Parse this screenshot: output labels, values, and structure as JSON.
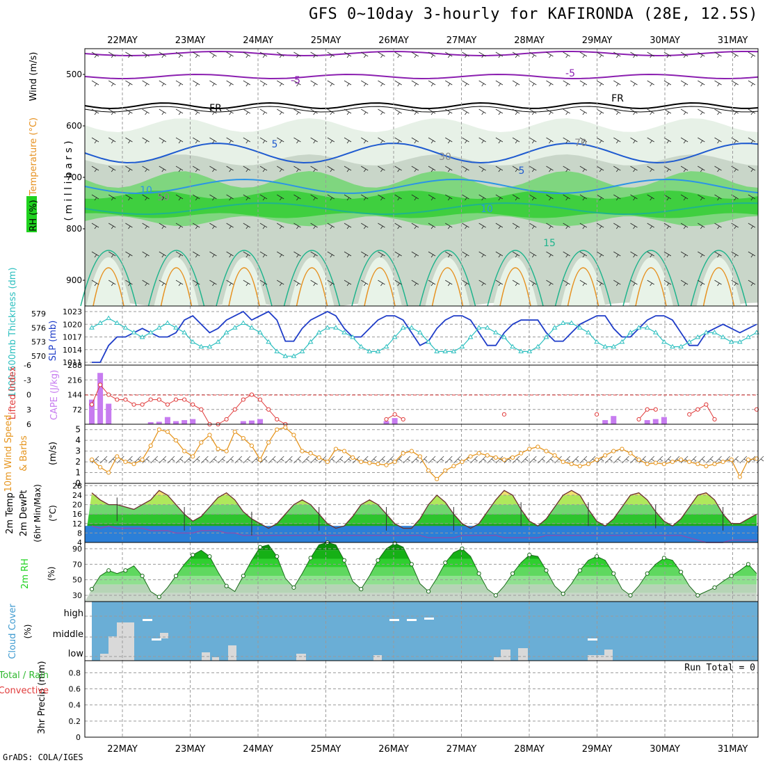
{
  "header": {
    "title": "GFS 0~10day 3-hourly for KAFIRONDA (28E, 12.5S)"
  },
  "footer": {
    "credit": "GrADS: COLA/IGES"
  },
  "chart_data": {
    "type": "meteogram",
    "dates": [
      "22MAY",
      "23MAY",
      "24MAY",
      "25MAY",
      "26MAY",
      "27MAY",
      "28MAY",
      "29MAY",
      "30MAY",
      "31MAY"
    ],
    "colors": {
      "rh_green": "#1fd21f",
      "rh_light": "#e6f2e6",
      "temp_purple": "#8b1fb0",
      "temp_blue": "#1e5ad0",
      "temp_cyan": "#2b94e6",
      "temp_teal": "#1fb48c",
      "temp_orange": "#e69120",
      "slp_line": "#1e3cc8",
      "thick_line": "#2bbfbf",
      "lifted": "#e03a3a",
      "cape_bar": "#c77cf0",
      "wind_line": "#e6951e",
      "cloud_bg": "#6aaed6",
      "cloud_box": "#d9d9d9"
    },
    "upper_air": {
      "ylabel_parts": [
        "RH (%)",
        "Temperature (°C)",
        "Wind (m/s)"
      ],
      "axis_label": "( m i l l i b a r s )",
      "yticks": [
        500,
        600,
        700,
        800,
        900
      ],
      "ylim": [
        450,
        950
      ],
      "contour_labels": [
        "-5",
        "-5",
        "FR",
        "FR",
        "5",
        "5",
        "10",
        "10",
        "15",
        "30",
        "50",
        "70"
      ]
    },
    "pressure": {
      "ylabels": [
        "1000-500mb Thickness (dm)",
        "SLP (mb)"
      ],
      "thickness_ticks": [
        570,
        573,
        576,
        579
      ],
      "slp_ticks": [
        1011,
        1014,
        1017,
        1020,
        1023
      ],
      "slp": [
        1011,
        1011,
        1015,
        1017,
        1017,
        1018,
        1019,
        1018,
        1017,
        1017,
        1018,
        1021,
        1022,
        1020,
        1018,
        1019,
        1021,
        1022,
        1023,
        1021,
        1022,
        1023,
        1021,
        1016,
        1016,
        1019,
        1021,
        1022,
        1023,
        1022,
        1019,
        1017,
        1017,
        1019,
        1021,
        1022,
        1022,
        1021,
        1018,
        1015,
        1016,
        1019,
        1021,
        1022,
        1022,
        1021,
        1018,
        1015,
        1015,
        1018,
        1020,
        1021,
        1021,
        1021,
        1018,
        1016,
        1016,
        1018,
        1020,
        1021,
        1022,
        1022,
        1019,
        1017,
        1017,
        1019,
        1021,
        1022,
        1022,
        1021,
        1018,
        1015,
        1015,
        1018,
        1019,
        1020,
        1019,
        1018,
        1019,
        1020
      ],
      "thickness": [
        576,
        577,
        578,
        577,
        576,
        575,
        574,
        575,
        576,
        577,
        576,
        575,
        573,
        572,
        572,
        573,
        575,
        576,
        577,
        576,
        575,
        573,
        571,
        570,
        570,
        571,
        573,
        575,
        576,
        576,
        575,
        574,
        572,
        571,
        571,
        572,
        574,
        576,
        576,
        575,
        573,
        571,
        571,
        571,
        572,
        574,
        576,
        576,
        575,
        574,
        572,
        571,
        571,
        572,
        574,
        576,
        577,
        577,
        576,
        575,
        573,
        572,
        572,
        573,
        575,
        576,
        576,
        575,
        573,
        572,
        572,
        573,
        574,
        575,
        575,
        574,
        573,
        573,
        574,
        575
      ]
    },
    "stability": {
      "ylabels": [
        "Lifted Index",
        "CAPE (J/kg)"
      ],
      "li_ticks": [
        "-6",
        "-3",
        "0",
        "3",
        "6"
      ],
      "cape_ticks": [
        72,
        144,
        216,
        288
      ],
      "lifted_index": [
        2,
        -2,
        0,
        1,
        1,
        2,
        2,
        1,
        1,
        2,
        1,
        1,
        2,
        3,
        6,
        6,
        5,
        3,
        1,
        0,
        1,
        3,
        5,
        6,
        null,
        null,
        null,
        null,
        null,
        null,
        null,
        null,
        null,
        null,
        null,
        5,
        4,
        5,
        null,
        null,
        null,
        null,
        null,
        null,
        null,
        null,
        null,
        null,
        null,
        4,
        null,
        null,
        null,
        null,
        null,
        null,
        null,
        null,
        null,
        null,
        4,
        null,
        null,
        null,
        null,
        5,
        3,
        3,
        null,
        null,
        null,
        4,
        3,
        2,
        5,
        null,
        null,
        null,
        null,
        3
      ],
      "cape": [
        120,
        250,
        100,
        0,
        0,
        0,
        0,
        10,
        12,
        35,
        15,
        20,
        25,
        0,
        0,
        0,
        0,
        0,
        15,
        18,
        25,
        0,
        0,
        0,
        0,
        0,
        0,
        0,
        0,
        0,
        0,
        0,
        0,
        0,
        0,
        15,
        30,
        0,
        0,
        0,
        0,
        0,
        0,
        0,
        0,
        0,
        0,
        0,
        0,
        0,
        0,
        0,
        0,
        0,
        0,
        0,
        0,
        0,
        0,
        0,
        0,
        20,
        40,
        0,
        0,
        0,
        20,
        25,
        35,
        0,
        0,
        0,
        0,
        0,
        0,
        0,
        0,
        0,
        0,
        0
      ]
    },
    "wind10m": {
      "ylabels": [
        "10m Wind Speed",
        "& Barbs",
        "(m/s)"
      ],
      "yticks": [
        0,
        1,
        2,
        3,
        4,
        5
      ],
      "speed": [
        2.2,
        1.5,
        1.0,
        2.5,
        2.0,
        1.8,
        2.2,
        3.5,
        5.0,
        4.8,
        4.0,
        3.0,
        2.5,
        3.8,
        4.5,
        3.2,
        3.0,
        4.8,
        4.2,
        3.5,
        2.2,
        3.8,
        5.0,
        5.2,
        4.5,
        3.0,
        2.8,
        2.4,
        2.0,
        3.2,
        3.0,
        2.4,
        2.0,
        1.9,
        1.8,
        1.7,
        2.0,
        2.8,
        3.0,
        2.5,
        1.2,
        0.4,
        1.2,
        1.6,
        2.0,
        2.5,
        2.8,
        2.6,
        2.4,
        2.2,
        2.4,
        2.8,
        3.2,
        3.4,
        3.0,
        2.6,
        2.0,
        1.8,
        1.6,
        1.8,
        2.2,
        2.6,
        3.0,
        3.2,
        2.8,
        2.2,
        1.8,
        1.9,
        1.8,
        2.0,
        2.2,
        2.0,
        1.8,
        1.6,
        1.8,
        2.0,
        2.2,
        0.6,
        2.2,
        2.3
      ]
    },
    "temp2m": {
      "ylabels": [
        "2m Temp",
        "2m DewPt",
        "(6hr Min/Max)",
        "(°C)"
      ],
      "yticks": [
        4,
        8,
        12,
        16,
        20,
        24,
        28
      ],
      "temp": [
        25,
        22,
        20,
        20,
        19,
        18,
        20,
        22,
        26,
        24,
        20,
        16,
        13,
        15,
        19,
        23,
        25,
        22,
        17,
        14,
        12,
        10,
        12,
        16,
        20,
        22,
        20,
        16,
        12,
        10,
        11,
        15,
        20,
        22,
        20,
        16,
        12,
        10,
        10,
        14,
        20,
        24,
        21,
        16,
        12,
        10,
        12,
        17,
        22,
        26,
        24,
        18,
        13,
        11,
        14,
        19,
        24,
        26,
        24,
        18,
        13,
        11,
        14,
        19,
        24,
        25,
        22,
        17,
        13,
        11,
        14,
        19,
        24,
        25,
        22,
        16,
        12,
        12,
        14,
        16
      ],
      "dewpoint": [
        11,
        10,
        11,
        10,
        10,
        10,
        10,
        9,
        9,
        9,
        8,
        8,
        8,
        9,
        9,
        9,
        8,
        8,
        7,
        7,
        7,
        7,
        7,
        7,
        7,
        7,
        7,
        7,
        7,
        7,
        7,
        7,
        7,
        7,
        7,
        7,
        7,
        7,
        7,
        7,
        6,
        6,
        6,
        6,
        7,
        7,
        7,
        7,
        7,
        6,
        6,
        6,
        6,
        6,
        7,
        7,
        7,
        7,
        7,
        7,
        7,
        7,
        7,
        7,
        7,
        7,
        7,
        7,
        7,
        7,
        7,
        6,
        5,
        4,
        4,
        4,
        5,
        5,
        5,
        5
      ]
    },
    "rh2m": {
      "ylabels": [
        "2m RH",
        "(%)"
      ],
      "yticks": [
        30,
        50,
        70,
        90
      ],
      "rh": [
        38,
        55,
        62,
        58,
        62,
        68,
        55,
        35,
        28,
        40,
        55,
        70,
        82,
        88,
        80,
        60,
        42,
        35,
        55,
        75,
        92,
        95,
        80,
        52,
        40,
        58,
        78,
        95,
        98,
        95,
        75,
        48,
        38,
        55,
        75,
        90,
        97,
        92,
        70,
        45,
        35,
        52,
        72,
        85,
        90,
        80,
        58,
        38,
        30,
        42,
        58,
        72,
        82,
        80,
        62,
        42,
        32,
        45,
        62,
        75,
        80,
        75,
        58,
        38,
        30,
        42,
        58,
        70,
        78,
        75,
        60,
        42,
        30,
        35,
        40,
        48,
        55,
        62,
        70,
        58
      ],
      "rh_green": "#1fd21f"
    },
    "clouds": {
      "ylabels": [
        "Cloud Cover",
        "(%)"
      ],
      "levels": [
        "high",
        "middle",
        "low"
      ],
      "cloud_bg": "#6aaed6"
    },
    "precip": {
      "ylabels": [
        "3hr Precip (mm)",
        "Total / Rain",
        "Convective"
      ],
      "yticks": [
        0,
        0.2,
        0.4,
        0.6,
        0.8
      ],
      "run_total_label": "Run Total = 0"
    }
  }
}
